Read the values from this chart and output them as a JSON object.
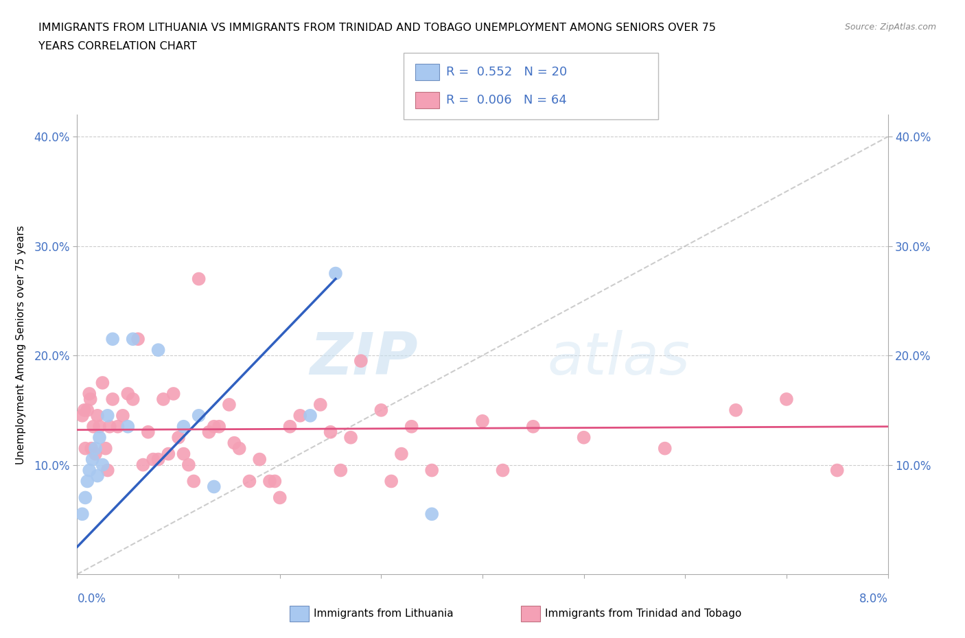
{
  "title_line1": "IMMIGRANTS FROM LITHUANIA VS IMMIGRANTS FROM TRINIDAD AND TOBAGO UNEMPLOYMENT AMONG SENIORS OVER 75",
  "title_line2": "YEARS CORRELATION CHART",
  "source_text": "Source: ZipAtlas.com",
  "ylabel": "Unemployment Among Seniors over 75 years",
  "xlim": [
    0.0,
    8.0
  ],
  "ylim": [
    0.0,
    42.0
  ],
  "y_ticks": [
    10.0,
    20.0,
    30.0,
    40.0
  ],
  "y_tick_labels": [
    "10.0%",
    "20.0%",
    "30.0%",
    "40.0%"
  ],
  "x_ticks": [
    0.0,
    1.0,
    2.0,
    3.0,
    4.0,
    5.0,
    6.0,
    7.0,
    8.0
  ],
  "watermark_zip": "ZIP",
  "watermark_atlas": "atlas",
  "legend_r1": "R =  0.552",
  "legend_n1": "N = 20",
  "legend_r2": "R =  0.006",
  "legend_n2": "N = 64",
  "color_lithuania": "#A8C8F0",
  "color_tt": "#F4A0B5",
  "color_blue_line": "#3060C0",
  "color_pink_line": "#E05080",
  "color_diag_line": "#C0C0C0",
  "blue_line_x0": 0.0,
  "blue_line_y0": 2.5,
  "blue_line_x1": 2.55,
  "blue_line_y1": 27.0,
  "pink_line_x0": 0.0,
  "pink_line_y0": 13.2,
  "pink_line_x1": 8.0,
  "pink_line_y1": 13.5,
  "lithuania_x": [
    0.05,
    0.08,
    0.1,
    0.12,
    0.15,
    0.18,
    0.2,
    0.22,
    0.25,
    0.3,
    0.35,
    0.5,
    0.55,
    0.8,
    1.05,
    1.2,
    1.35,
    2.3,
    2.55,
    3.5
  ],
  "lithuania_y": [
    5.5,
    7.0,
    8.5,
    9.5,
    10.5,
    11.5,
    9.0,
    12.5,
    10.0,
    14.5,
    21.5,
    13.5,
    21.5,
    20.5,
    13.5,
    14.5,
    8.0,
    14.5,
    27.5,
    5.5
  ],
  "tt_x": [
    0.05,
    0.07,
    0.08,
    0.1,
    0.12,
    0.13,
    0.14,
    0.16,
    0.18,
    0.2,
    0.22,
    0.25,
    0.28,
    0.3,
    0.32,
    0.35,
    0.4,
    0.45,
    0.5,
    0.55,
    0.6,
    0.65,
    0.7,
    0.75,
    0.8,
    0.85,
    0.9,
    0.95,
    1.0,
    1.05,
    1.1,
    1.15,
    1.2,
    1.3,
    1.35,
    1.4,
    1.5,
    1.55,
    1.6,
    1.7,
    1.8,
    1.9,
    1.95,
    2.0,
    2.1,
    2.2,
    2.4,
    2.5,
    2.6,
    2.7,
    2.8,
    3.0,
    3.1,
    3.2,
    3.3,
    3.5,
    4.0,
    4.2,
    4.5,
    5.0,
    5.8,
    6.5,
    7.0,
    7.5
  ],
  "tt_y": [
    14.5,
    15.0,
    11.5,
    15.0,
    16.5,
    16.0,
    11.5,
    13.5,
    11.0,
    14.5,
    13.5,
    17.5,
    11.5,
    9.5,
    13.5,
    16.0,
    13.5,
    14.5,
    16.5,
    16.0,
    21.5,
    10.0,
    13.0,
    10.5,
    10.5,
    16.0,
    11.0,
    16.5,
    12.5,
    11.0,
    10.0,
    8.5,
    27.0,
    13.0,
    13.5,
    13.5,
    15.5,
    12.0,
    11.5,
    8.5,
    10.5,
    8.5,
    8.5,
    7.0,
    13.5,
    14.5,
    15.5,
    13.0,
    9.5,
    12.5,
    19.5,
    15.0,
    8.5,
    11.0,
    13.5,
    9.5,
    14.0,
    9.5,
    13.5,
    12.5,
    11.5,
    15.0,
    16.0,
    9.5
  ]
}
